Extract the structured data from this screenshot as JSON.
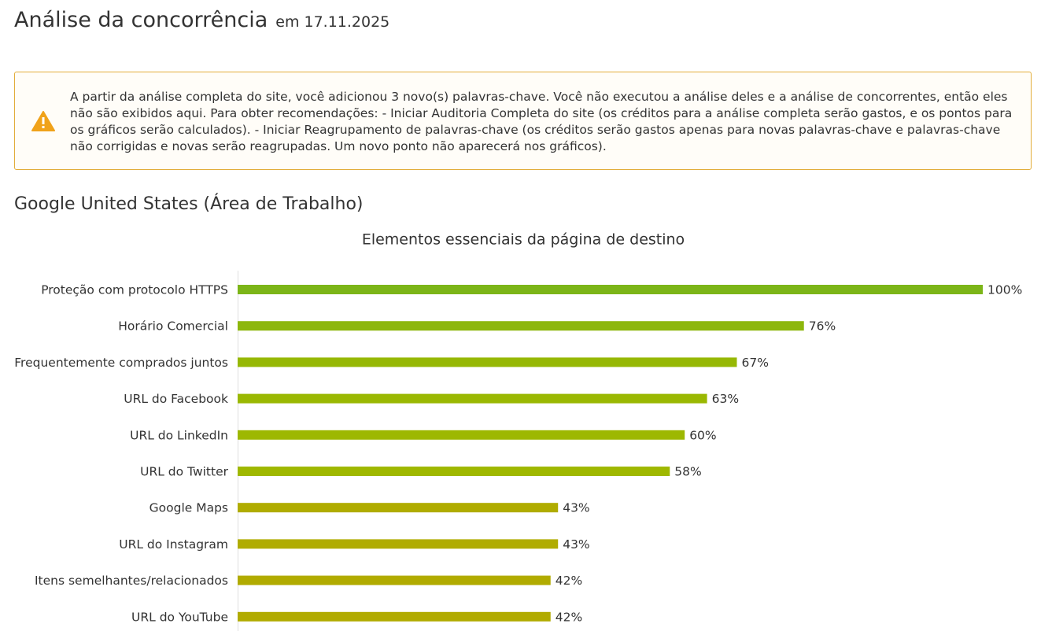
{
  "header": {
    "title": "Análise da concorrência",
    "date": "em 17.11.2025"
  },
  "alert": {
    "text": "A partir da análise completa do site, você adicionou 3 novo(s) palavras-chave. Você não executou a análise deles e a análise de concorrentes, então eles não são exibidos aqui. Para obter recomendações: - Iniciar Auditoria Completa do site (os créditos para a análise completa serão gastos, e os pontos para os gráficos serão calculados). - Iniciar Reagrupamento de palavras-chave (os créditos serão gastos apenas para novas palavras-chave e palavras-chave não corrigidas e novas serão reagrupadas. Um novo ponto não aparecerá nos gráficos)."
  },
  "section": {
    "title": "Google United States (Área de Trabalho)"
  },
  "chart_data": {
    "type": "bar",
    "orientation": "horizontal",
    "title": "Elementos essenciais da página de destino",
    "categories": [
      "Proteção com protocolo HTTPS",
      "Horário Comercial",
      "Frequentemente comprados juntos",
      "URL do Facebook",
      "URL do LinkedIn",
      "URL do Twitter",
      "Google Maps",
      "URL do Instagram",
      "Itens semelhantes/relacionados",
      "URL do YouTube"
    ],
    "values": [
      100,
      76,
      67,
      63,
      60,
      58,
      43,
      43,
      42,
      42
    ],
    "value_labels": [
      "100%",
      "76%",
      "67%",
      "63%",
      "60%",
      "58%",
      "43%",
      "43%",
      "42%",
      "42%"
    ],
    "colors": [
      "#7cb518",
      "#8db70c",
      "#96b804",
      "#9ab802",
      "#9db801",
      "#9fb800",
      "#b0ac00",
      "#b0ac00",
      "#b1ab00",
      "#b1ab00"
    ],
    "xlim": [
      0,
      100
    ]
  }
}
